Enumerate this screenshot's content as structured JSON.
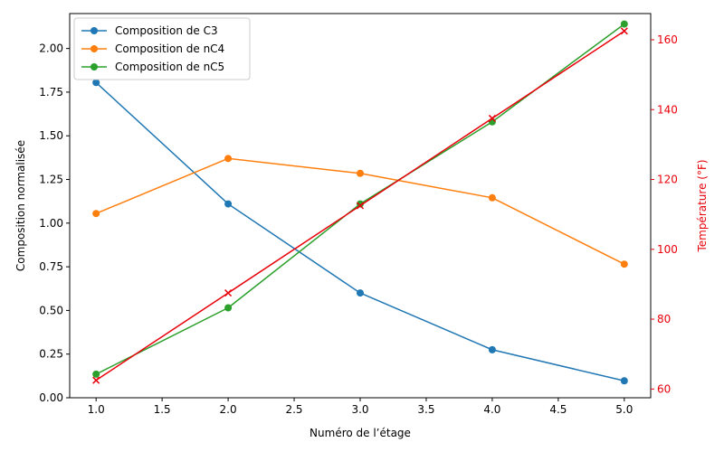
{
  "chart_data": {
    "type": "line",
    "xlabel": "Numéro de l’étage",
    "ylabel": "Composition normalisée",
    "y2label": "Température (°F)",
    "xlim": [
      0.8,
      5.2
    ],
    "ylim": [
      0,
      2.2
    ],
    "y2lim": [
      57.5,
      167.5
    ],
    "xticks": [
      "1.0",
      "1.5",
      "2.0",
      "2.5",
      "3.0",
      "3.5",
      "4.0",
      "4.5",
      "5.0"
    ],
    "yticks": [
      "0.00",
      "0.25",
      "0.50",
      "0.75",
      "1.00",
      "1.25",
      "1.50",
      "1.75",
      "2.00"
    ],
    "y2ticks": [
      "60",
      "80",
      "100",
      "120",
      "140",
      "160"
    ],
    "legend_position": "top-left",
    "grid": false,
    "x": [
      1,
      2,
      3,
      4,
      5
    ],
    "series": [
      {
        "name": "Composition de C3",
        "axis": "left",
        "marker": "circle",
        "color": "#1f77b4",
        "values": [
          1.805,
          1.11,
          0.6,
          0.275,
          0.097
        ]
      },
      {
        "name": "Composition de nC4",
        "axis": "left",
        "marker": "circle",
        "color": "#ff7f0e",
        "values": [
          1.055,
          1.37,
          1.285,
          1.145,
          0.765
        ]
      },
      {
        "name": "Composition de nC5",
        "axis": "left",
        "marker": "circle",
        "color": "#2ca02c",
        "values": [
          0.135,
          0.515,
          1.11,
          1.58,
          2.14
        ]
      },
      {
        "axis": "right",
        "marker": "x",
        "color": "#e8000b",
        "values": [
          62.5,
          87.5,
          112.5,
          137.5,
          162.5
        ]
      }
    ]
  }
}
